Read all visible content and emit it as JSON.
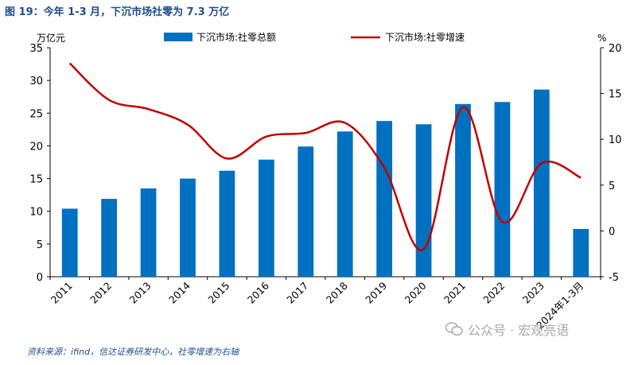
{
  "title": "图 19：今年 1-3 月，下沉市场社零为 7.3 万亿",
  "source": "资料来源：ifind，信达证券研发中心，社零增速为右轴",
  "watermark": "公众号 · 宏观亮语",
  "colors": {
    "bar": "#0070c0",
    "line": "#c00000",
    "title": "#1f4e8c",
    "axis": "#000000"
  },
  "chart_data": {
    "type": "bar+line",
    "categories": [
      "2011",
      "2012",
      "2013",
      "2014",
      "2015",
      "2016",
      "2017",
      "2018",
      "2019",
      "2020",
      "2021",
      "2022",
      "2023",
      "2024年1-3月"
    ],
    "series": [
      {
        "name": "下沉市场:社零总额",
        "type": "bar",
        "axis": "left",
        "values": [
          10.4,
          11.9,
          13.5,
          15.0,
          16.2,
          17.9,
          19.9,
          22.2,
          23.8,
          23.3,
          26.4,
          26.7,
          28.6,
          7.3
        ]
      },
      {
        "name": "下沉市场:社零增速",
        "type": "line",
        "axis": "right",
        "values": [
          18.3,
          14.3,
          13.3,
          11.6,
          7.9,
          10.3,
          10.7,
          11.8,
          6.9,
          -2.0,
          13.5,
          1.0,
          7.4,
          5.8
        ]
      }
    ],
    "left_axis": {
      "label": "万亿元",
      "min": 0,
      "max": 35,
      "ticks": [
        "0",
        "5",
        "10",
        "15",
        "20",
        "25",
        "30",
        "35"
      ]
    },
    "right_axis": {
      "label": "%",
      "min": -5,
      "max": 20,
      "ticks": [
        "-5",
        "0",
        "5",
        "10",
        "15",
        "20"
      ]
    },
    "legend_position": "top"
  }
}
